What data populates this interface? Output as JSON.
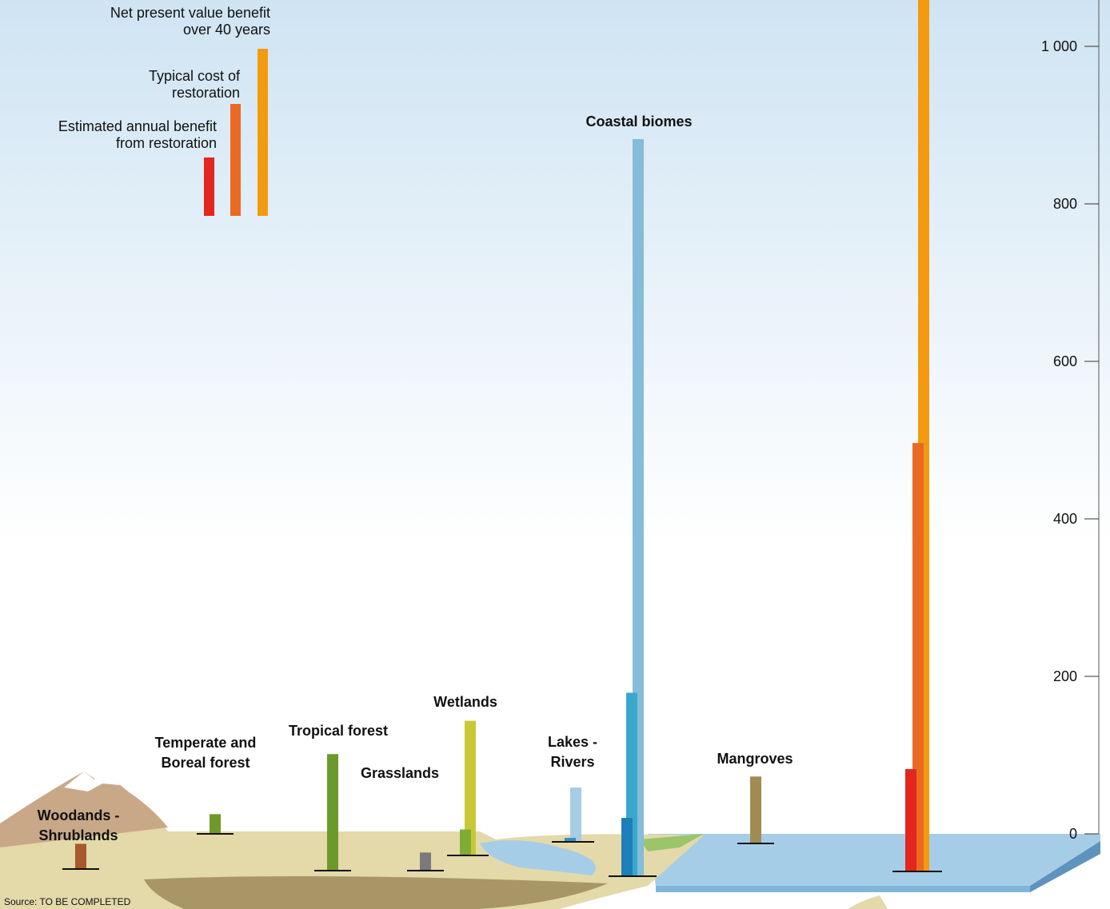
{
  "chart_data": {
    "type": "bar",
    "legend": [
      {
        "name": [
          "Net present value benefit",
          "over 40 years"
        ],
        "color": "#f39a10"
      },
      {
        "name": [
          "Typical cost of",
          "restoration"
        ],
        "color": "#ea6a24"
      },
      {
        "name": [
          "Estimated annual benefit",
          "from restoration"
        ],
        "color": "#e3261e"
      }
    ],
    "biomes": [
      {
        "name": [
          "Woodands -",
          "Shrublands"
        ],
        "bars": [
          {
            "value": 32,
            "color": "#a8582a"
          }
        ]
      },
      {
        "name": [
          "Temperate and",
          "Boreal forest"
        ],
        "bars": [
          {
            "value": 25,
            "color": "#6d9a2a"
          }
        ]
      },
      {
        "name": [
          "Tropical forest"
        ],
        "bars": [
          {
            "value": 148,
            "color": "#6b9a2b"
          }
        ]
      },
      {
        "name": [
          "Grasslands"
        ],
        "bars": [
          {
            "value": 23,
            "color": "#7a7a7a"
          }
        ]
      },
      {
        "name": [
          "Wetlands"
        ],
        "bars": [
          {
            "value": 33,
            "color": "#7fac36"
          },
          {
            "value": 171,
            "color": "#c8c837"
          }
        ]
      },
      {
        "name": [
          "Lakes -",
          "Rivers"
        ],
        "bars": [
          {
            "value": 5,
            "color": "#2f8fc4"
          },
          {
            "value": 69,
            "color": "#a7cde3"
          }
        ]
      },
      {
        "name": [
          "Coastal biomes"
        ],
        "bars": [
          {
            "value": 74,
            "color": "#1d7eb8"
          },
          {
            "value": 233,
            "color": "#3aa8cc"
          },
          {
            "value": 936,
            "color": "#85bcd9"
          }
        ]
      },
      {
        "name": [
          "Mangroves"
        ],
        "bars": [
          {
            "value": 85,
            "color": "#a08c52"
          }
        ]
      },
      {
        "name": null,
        "bars": [
          {
            "value": 130,
            "color": "#e3261e"
          },
          {
            "value": 544,
            "color": "#ea6a24"
          },
          {
            "value": 1130,
            "color": "#f39a10"
          }
        ]
      }
    ],
    "ylim": [
      0,
      1000
    ],
    "yticks": [
      0,
      200,
      400,
      600,
      800,
      {
        "value": 1000,
        "label": "1 000"
      }
    ],
    "source": "Source: TO BE COMPLETED"
  }
}
